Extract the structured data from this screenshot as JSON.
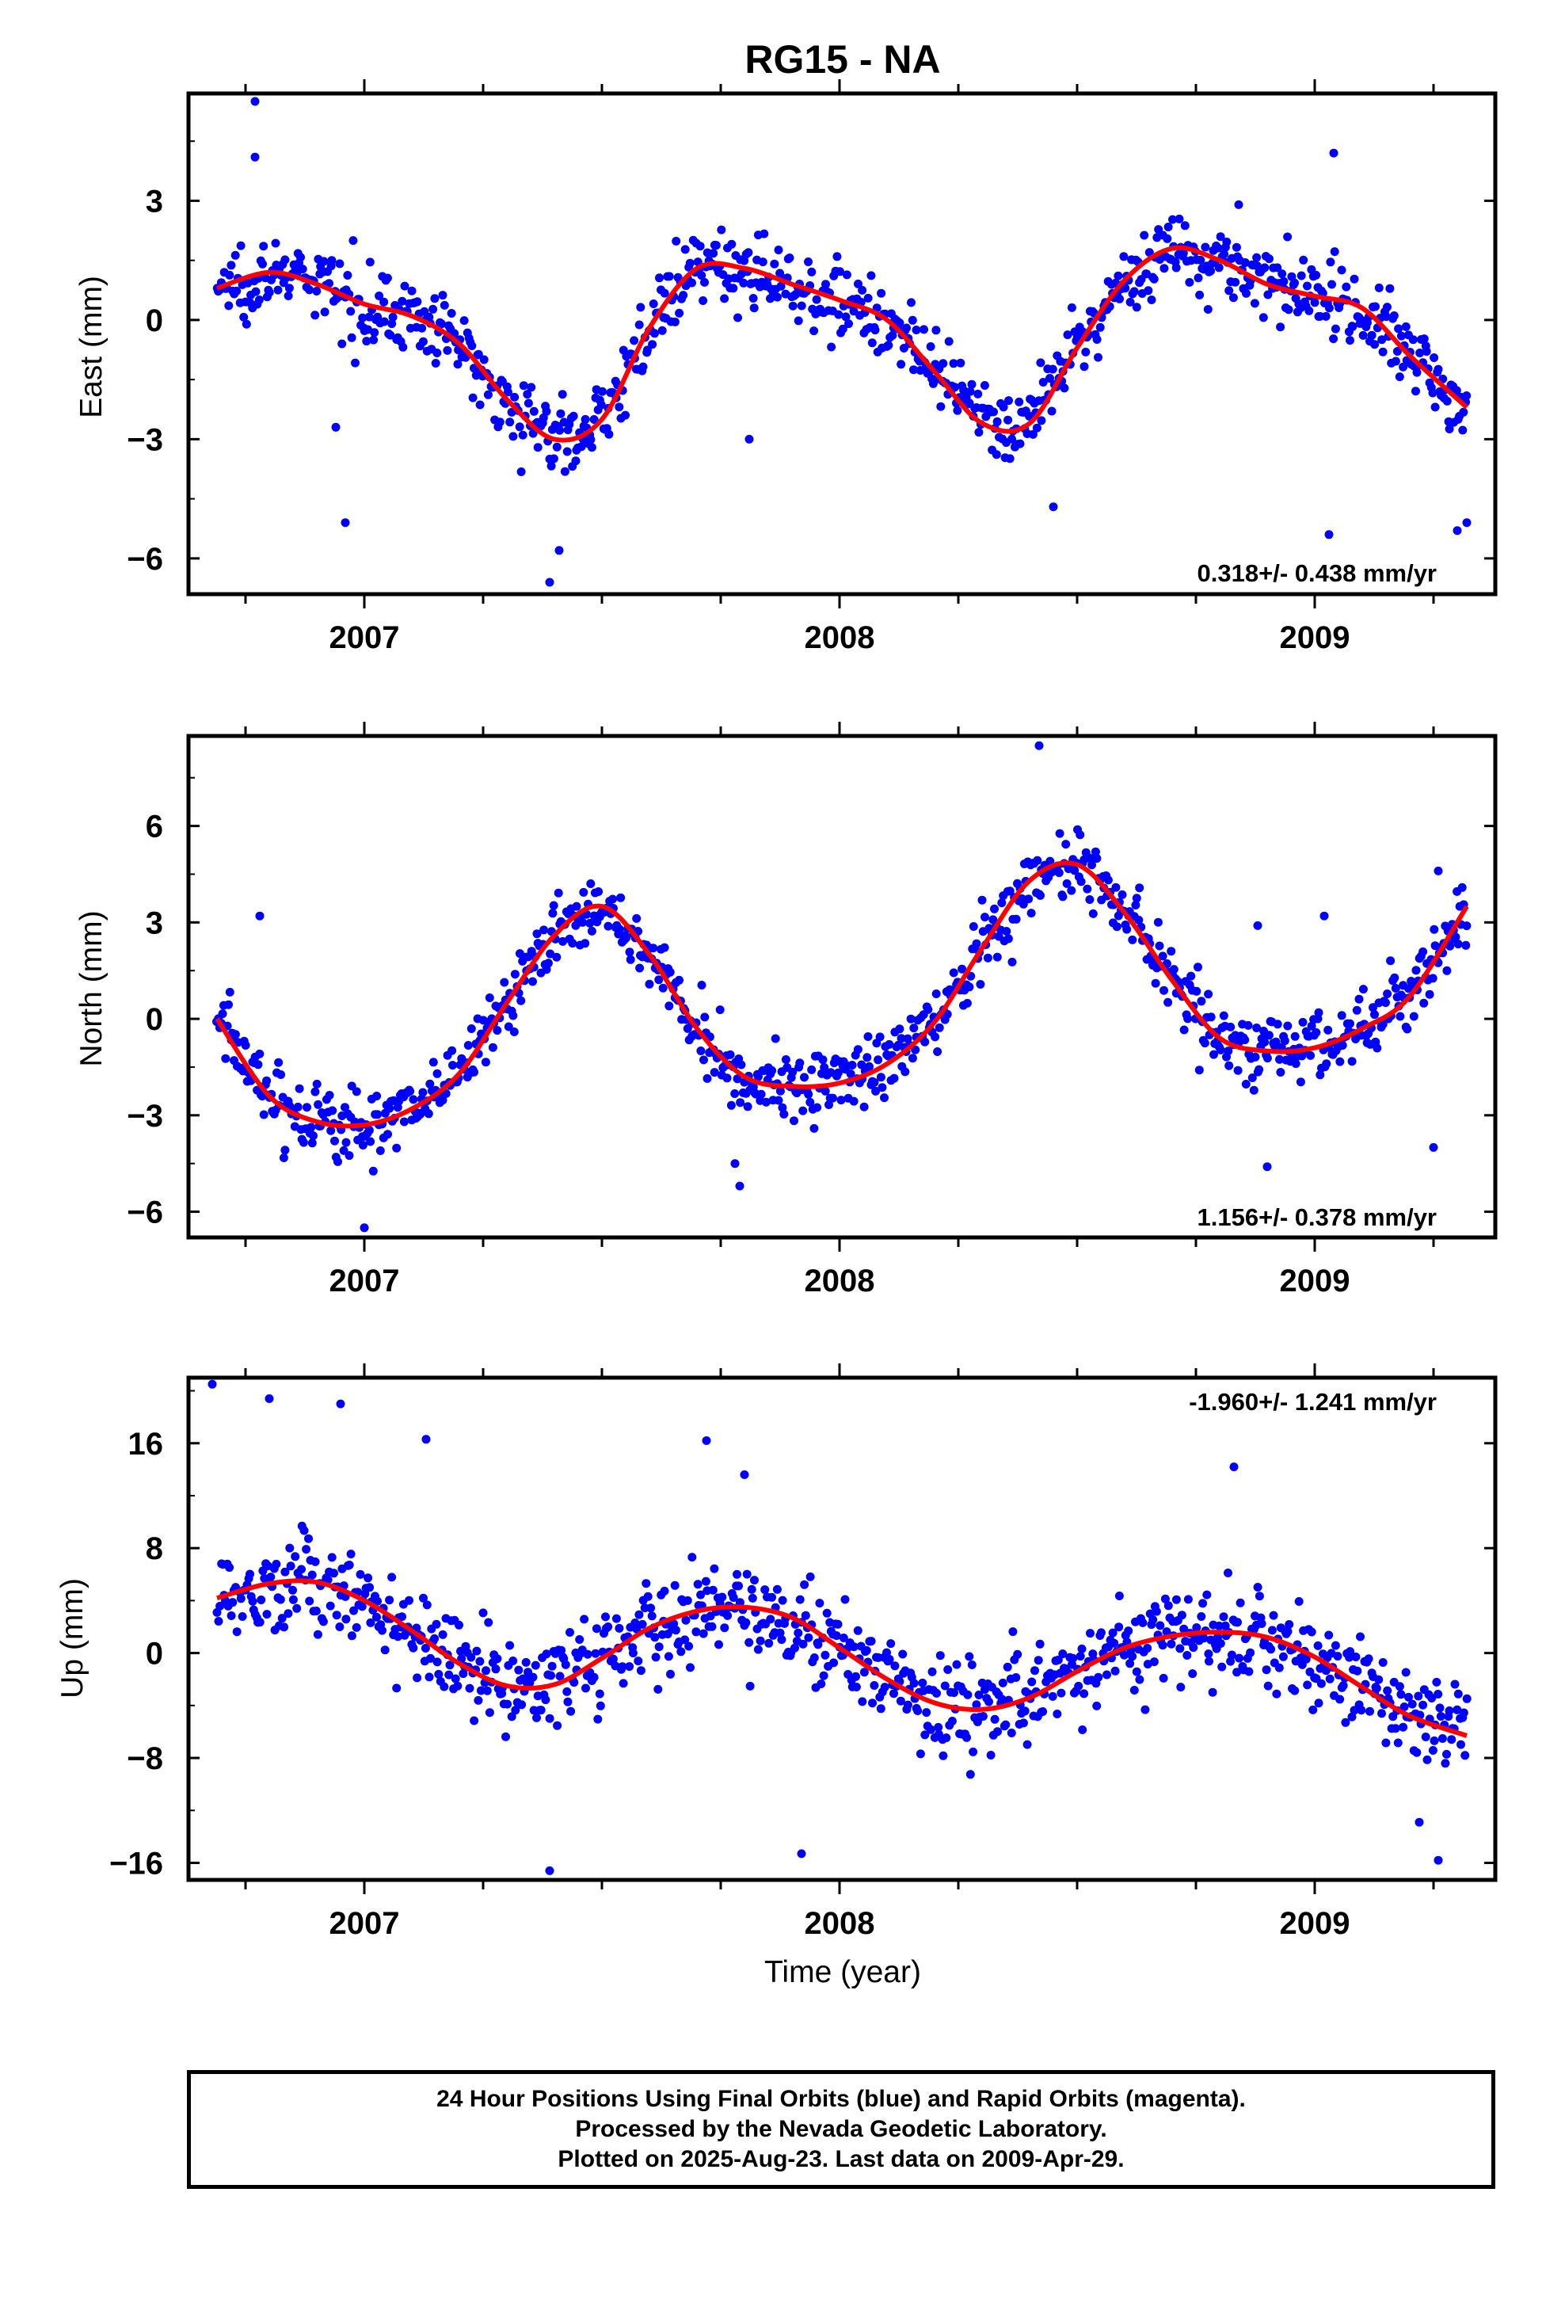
{
  "title": "RG15 - NA",
  "xlabel": "Time (year)",
  "colors": {
    "points": "#0000ff",
    "fit": "#ff0000",
    "frame": "#000000"
  },
  "chart_data": [
    {
      "type": "scatter",
      "name": "east",
      "ylabel": "East (mm)",
      "rate_label": "0.318+/- 0.438 mm/yr",
      "rate_position": "bottom-right",
      "xlim": [
        2006.63,
        2009.38
      ],
      "ylim": [
        -6.9,
        5.7
      ],
      "yticks": [
        3,
        0,
        -3,
        -6
      ],
      "ytick_labels": [
        "3",
        "0",
        "−3",
        "−6"
      ],
      "xticks": [
        2007,
        2008,
        2009
      ],
      "xtick_labels": [
        "2007",
        "2008",
        "2009"
      ],
      "fit": {
        "x": [
          2006.69,
          2006.8,
          2006.9,
          2007.0,
          2007.1,
          2007.2,
          2007.3,
          2007.4,
          2007.5,
          2007.6,
          2007.7,
          2007.8,
          2007.9,
          2008.0,
          2008.1,
          2008.2,
          2008.3,
          2008.4,
          2008.5,
          2008.6,
          2008.7,
          2008.8,
          2008.9,
          2009.0,
          2009.1,
          2009.2,
          2009.32
        ],
        "y": [
          0.8,
          1.2,
          0.9,
          0.4,
          0.1,
          -0.6,
          -2.0,
          -3.0,
          -2.5,
          -0.2,
          1.3,
          1.3,
          0.9,
          0.5,
          0.0,
          -1.3,
          -2.6,
          -2.6,
          -0.7,
          1.0,
          1.8,
          1.5,
          0.9,
          0.6,
          0.3,
          -0.9,
          -2.2
        ]
      },
      "points": {
        "count": 880,
        "outliers": [
          [
            2006.77,
            5.5
          ],
          [
            2006.77,
            4.1
          ],
          [
            2006.94,
            -2.7
          ],
          [
            2006.96,
            -5.1
          ],
          [
            2007.39,
            -6.6
          ],
          [
            2007.41,
            -5.8
          ],
          [
            2007.81,
            -3.0
          ],
          [
            2008.45,
            -4.7
          ],
          [
            2008.84,
            2.9
          ],
          [
            2009.03,
            -5.4
          ],
          [
            2009.04,
            4.2
          ],
          [
            2009.3,
            -5.3
          ],
          [
            2009.32,
            -5.1
          ]
        ]
      }
    },
    {
      "type": "scatter",
      "name": "north",
      "ylabel": "North (mm)",
      "rate_label": "1.156+/- 0.378 mm/yr",
      "rate_position": "bottom-right",
      "xlim": [
        2006.63,
        2009.38
      ],
      "ylim": [
        -6.8,
        8.8
      ],
      "yticks": [
        6,
        3,
        0,
        -3,
        -6
      ],
      "ytick_labels": [
        "6",
        "3",
        "0",
        "−3",
        "−6"
      ],
      "xticks": [
        2007,
        2008,
        2009
      ],
      "xtick_labels": [
        "2007",
        "2008",
        "2009"
      ],
      "fit": {
        "x": [
          2006.69,
          2006.8,
          2006.9,
          2007.0,
          2007.1,
          2007.2,
          2007.3,
          2007.4,
          2007.5,
          2007.6,
          2007.7,
          2007.8,
          2007.9,
          2008.0,
          2008.1,
          2008.2,
          2008.3,
          2008.4,
          2008.5,
          2008.6,
          2008.7,
          2008.8,
          2008.9,
          2009.0,
          2009.1,
          2009.2,
          2009.32
        ],
        "y": [
          0.0,
          -2.4,
          -3.2,
          -3.3,
          -2.8,
          -1.7,
          0.5,
          2.6,
          3.5,
          2.0,
          -0.3,
          -1.8,
          -2.1,
          -2.0,
          -1.4,
          -0.1,
          2.2,
          4.3,
          4.8,
          3.3,
          1.2,
          -0.6,
          -1.0,
          -0.9,
          -0.3,
          0.7,
          3.5
        ]
      },
      "points": {
        "count": 880,
        "outliers": [
          [
            2006.78,
            3.2
          ],
          [
            2007.0,
            -6.5
          ],
          [
            2007.79,
            -5.2
          ],
          [
            2007.78,
            -4.5
          ],
          [
            2008.42,
            8.5
          ],
          [
            2008.88,
            2.9
          ],
          [
            2008.9,
            -4.6
          ],
          [
            2009.02,
            3.2
          ],
          [
            2009.25,
            -4.0
          ],
          [
            2009.26,
            4.6
          ]
        ]
      }
    },
    {
      "type": "scatter",
      "name": "up",
      "ylabel": "Up (mm)",
      "rate_label": "-1.960+/- 1.241 mm/yr",
      "rate_position": "top-right",
      "xlim": [
        2006.63,
        2009.38
      ],
      "ylim": [
        -17.3,
        21.0
      ],
      "yticks": [
        16,
        8,
        0,
        -8,
        -16
      ],
      "ytick_labels": [
        "16",
        "8",
        "0",
        "−8",
        "−16"
      ],
      "xticks": [
        2007,
        2008,
        2009
      ],
      "xtick_labels": [
        "2007",
        "2008",
        "2009"
      ],
      "fit": {
        "x": [
          2006.69,
          2006.8,
          2006.9,
          2007.0,
          2007.1,
          2007.2,
          2007.3,
          2007.4,
          2007.5,
          2007.6,
          2007.7,
          2007.8,
          2007.9,
          2008.0,
          2008.1,
          2008.2,
          2008.3,
          2008.4,
          2008.5,
          2008.6,
          2008.7,
          2008.8,
          2008.9,
          2009.0,
          2009.1,
          2009.2,
          2009.32
        ],
        "y": [
          4.2,
          5.3,
          5.4,
          4.0,
          1.7,
          -0.8,
          -2.5,
          -2.4,
          -0.4,
          1.9,
          3.2,
          3.5,
          2.7,
          0.4,
          -2.0,
          -3.8,
          -4.3,
          -3.4,
          -1.4,
          0.4,
          1.3,
          1.6,
          1.2,
          -0.3,
          -2.6,
          -4.8,
          -6.3
        ]
      },
      "points": {
        "count": 880,
        "outliers": [
          [
            2006.68,
            20.5
          ],
          [
            2006.8,
            19.4
          ],
          [
            2006.95,
            19.0
          ],
          [
            2007.13,
            16.3
          ],
          [
            2007.72,
            16.2
          ],
          [
            2007.8,
            13.6
          ],
          [
            2007.92,
            -15.3
          ],
          [
            2007.39,
            -16.6
          ],
          [
            2008.83,
            14.2
          ],
          [
            2009.26,
            -15.8
          ],
          [
            2009.22,
            -12.9
          ]
        ]
      }
    }
  ],
  "footer": {
    "line1": "24 Hour Positions Using Final Orbits (blue) and Rapid Orbits (magenta).",
    "line2": "Processed by the Nevada Geodetic Laboratory.",
    "line3": "Plotted on 2025-Aug-23. Last data on 2009-Apr-29."
  }
}
